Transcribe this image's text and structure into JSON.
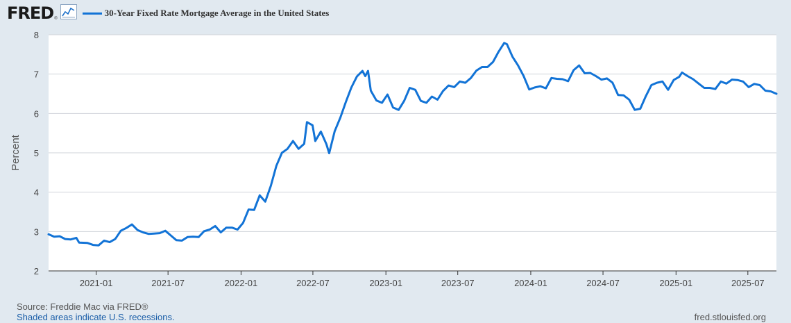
{
  "header": {
    "logo_text": "FRED",
    "logo_reg": "®",
    "logo_icon": "line-chart-icon",
    "legend_label": "30-Year Fixed Rate Mortgage Average in the United States"
  },
  "footer": {
    "source": "Source: Freddie Mac via FRED®",
    "recession_note": "Shaded areas indicate U.S. recessions.",
    "site": "fred.stlouisfed.org"
  },
  "colors": {
    "line": "#1273d6",
    "plot_background": "#ffffff",
    "page_background": "#e1e9f0",
    "grid": "#cfd3d9"
  },
  "chart_data": {
    "type": "line",
    "title": "30-Year Fixed Rate Mortgage Average in the United States",
    "xlabel": "",
    "ylabel": "Percent",
    "ylim": [
      2,
      8
    ],
    "xlim": [
      "2020-09-03",
      "2025-09-11"
    ],
    "y_ticks": [
      2,
      3,
      4,
      5,
      6,
      7,
      8
    ],
    "x_ticks": [
      {
        "date": "2021-01-01",
        "label": "2021-01"
      },
      {
        "date": "2021-07-01",
        "label": "2021-07"
      },
      {
        "date": "2022-01-01",
        "label": "2022-01"
      },
      {
        "date": "2022-07-01",
        "label": "2022-07"
      },
      {
        "date": "2023-01-01",
        "label": "2023-01"
      },
      {
        "date": "2023-07-01",
        "label": "2023-07"
      },
      {
        "date": "2024-01-01",
        "label": "2024-01"
      },
      {
        "date": "2024-07-01",
        "label": "2024-07"
      },
      {
        "date": "2025-01-01",
        "label": "2025-01"
      },
      {
        "date": "2025-07-01",
        "label": "2025-07"
      }
    ],
    "grid": "horizontal",
    "legend": "top-left",
    "series": [
      {
        "name": "30-Year Fixed Rate Mortgage Average in the United States",
        "points": [
          [
            "2020-09-03",
            2.93
          ],
          [
            "2020-09-17",
            2.87
          ],
          [
            "2020-10-01",
            2.88
          ],
          [
            "2020-10-15",
            2.81
          ],
          [
            "2020-10-29",
            2.8
          ],
          [
            "2020-11-12",
            2.84
          ],
          [
            "2020-11-19",
            2.72
          ],
          [
            "2020-12-10",
            2.71
          ],
          [
            "2020-12-24",
            2.66
          ],
          [
            "2021-01-07",
            2.65
          ],
          [
            "2021-01-21",
            2.77
          ],
          [
            "2021-02-04",
            2.73
          ],
          [
            "2021-02-18",
            2.81
          ],
          [
            "2021-03-04",
            3.02
          ],
          [
            "2021-03-18",
            3.09
          ],
          [
            "2021-04-01",
            3.18
          ],
          [
            "2021-04-15",
            3.04
          ],
          [
            "2021-04-29",
            2.98
          ],
          [
            "2021-05-13",
            2.94
          ],
          [
            "2021-05-27",
            2.95
          ],
          [
            "2021-06-10",
            2.96
          ],
          [
            "2021-06-24",
            3.02
          ],
          [
            "2021-07-08",
            2.9
          ],
          [
            "2021-07-22",
            2.78
          ],
          [
            "2021-08-05",
            2.77
          ],
          [
            "2021-08-19",
            2.86
          ],
          [
            "2021-09-02",
            2.87
          ],
          [
            "2021-09-16",
            2.86
          ],
          [
            "2021-09-30",
            3.01
          ],
          [
            "2021-10-14",
            3.05
          ],
          [
            "2021-10-28",
            3.14
          ],
          [
            "2021-11-11",
            2.98
          ],
          [
            "2021-11-25",
            3.1
          ],
          [
            "2021-12-09",
            3.1
          ],
          [
            "2021-12-23",
            3.05
          ],
          [
            "2022-01-06",
            3.22
          ],
          [
            "2022-01-20",
            3.56
          ],
          [
            "2022-02-03",
            3.55
          ],
          [
            "2022-02-17",
            3.92
          ],
          [
            "2022-03-03",
            3.76
          ],
          [
            "2022-03-17",
            4.16
          ],
          [
            "2022-03-31",
            4.67
          ],
          [
            "2022-04-14",
            5.0
          ],
          [
            "2022-04-28",
            5.1
          ],
          [
            "2022-05-12",
            5.3
          ],
          [
            "2022-05-26",
            5.1
          ],
          [
            "2022-06-09",
            5.23
          ],
          [
            "2022-06-16",
            5.78
          ],
          [
            "2022-06-30",
            5.7
          ],
          [
            "2022-07-07",
            5.3
          ],
          [
            "2022-07-21",
            5.54
          ],
          [
            "2022-08-04",
            5.22
          ],
          [
            "2022-08-11",
            4.99
          ],
          [
            "2022-08-25",
            5.55
          ],
          [
            "2022-09-08",
            5.89
          ],
          [
            "2022-09-22",
            6.29
          ],
          [
            "2022-10-06",
            6.66
          ],
          [
            "2022-10-20",
            6.94
          ],
          [
            "2022-11-03",
            7.08
          ],
          [
            "2022-11-10",
            6.95
          ],
          [
            "2022-11-17",
            7.08
          ],
          [
            "2022-11-24",
            6.58
          ],
          [
            "2022-12-08",
            6.33
          ],
          [
            "2022-12-22",
            6.27
          ],
          [
            "2023-01-05",
            6.48
          ],
          [
            "2023-01-19",
            6.15
          ],
          [
            "2023-02-02",
            6.09
          ],
          [
            "2023-02-16",
            6.32
          ],
          [
            "2023-03-02",
            6.65
          ],
          [
            "2023-03-16",
            6.6
          ],
          [
            "2023-03-30",
            6.32
          ],
          [
            "2023-04-13",
            6.27
          ],
          [
            "2023-04-27",
            6.43
          ],
          [
            "2023-05-11",
            6.35
          ],
          [
            "2023-05-25",
            6.57
          ],
          [
            "2023-06-08",
            6.71
          ],
          [
            "2023-06-22",
            6.67
          ],
          [
            "2023-07-06",
            6.81
          ],
          [
            "2023-07-20",
            6.78
          ],
          [
            "2023-08-03",
            6.9
          ],
          [
            "2023-08-17",
            7.09
          ],
          [
            "2023-08-31",
            7.18
          ],
          [
            "2023-09-14",
            7.18
          ],
          [
            "2023-09-28",
            7.31
          ],
          [
            "2023-10-12",
            7.57
          ],
          [
            "2023-10-26",
            7.79
          ],
          [
            "2023-11-02",
            7.76
          ],
          [
            "2023-11-16",
            7.44
          ],
          [
            "2023-11-30",
            7.22
          ],
          [
            "2023-12-14",
            6.95
          ],
          [
            "2023-12-28",
            6.61
          ],
          [
            "2024-01-11",
            6.66
          ],
          [
            "2024-01-25",
            6.69
          ],
          [
            "2024-02-08",
            6.64
          ],
          [
            "2024-02-22",
            6.9
          ],
          [
            "2024-03-07",
            6.88
          ],
          [
            "2024-03-21",
            6.87
          ],
          [
            "2024-04-04",
            6.82
          ],
          [
            "2024-04-18",
            7.1
          ],
          [
            "2024-05-02",
            7.22
          ],
          [
            "2024-05-16",
            7.02
          ],
          [
            "2024-05-30",
            7.03
          ],
          [
            "2024-06-13",
            6.95
          ],
          [
            "2024-06-27",
            6.86
          ],
          [
            "2024-07-11",
            6.89
          ],
          [
            "2024-07-25",
            6.78
          ],
          [
            "2024-08-08",
            6.47
          ],
          [
            "2024-08-22",
            6.46
          ],
          [
            "2024-09-05",
            6.35
          ],
          [
            "2024-09-19",
            6.09
          ],
          [
            "2024-10-03",
            6.12
          ],
          [
            "2024-10-17",
            6.44
          ],
          [
            "2024-10-31",
            6.72
          ],
          [
            "2024-11-14",
            6.78
          ],
          [
            "2024-11-28",
            6.81
          ],
          [
            "2024-12-12",
            6.6
          ],
          [
            "2024-12-26",
            6.85
          ],
          [
            "2025-01-09",
            6.93
          ],
          [
            "2025-01-16",
            7.04
          ],
          [
            "2025-01-30",
            6.95
          ],
          [
            "2025-02-13",
            6.87
          ],
          [
            "2025-02-27",
            6.76
          ],
          [
            "2025-03-13",
            6.65
          ],
          [
            "2025-03-27",
            6.65
          ],
          [
            "2025-04-10",
            6.62
          ],
          [
            "2025-04-24",
            6.81
          ],
          [
            "2025-05-08",
            6.76
          ],
          [
            "2025-05-22",
            6.86
          ],
          [
            "2025-06-05",
            6.85
          ],
          [
            "2025-06-19",
            6.81
          ],
          [
            "2025-07-03",
            6.67
          ],
          [
            "2025-07-17",
            6.75
          ],
          [
            "2025-07-31",
            6.72
          ],
          [
            "2025-08-14",
            6.58
          ],
          [
            "2025-08-28",
            6.56
          ],
          [
            "2025-09-11",
            6.5
          ]
        ]
      }
    ]
  }
}
